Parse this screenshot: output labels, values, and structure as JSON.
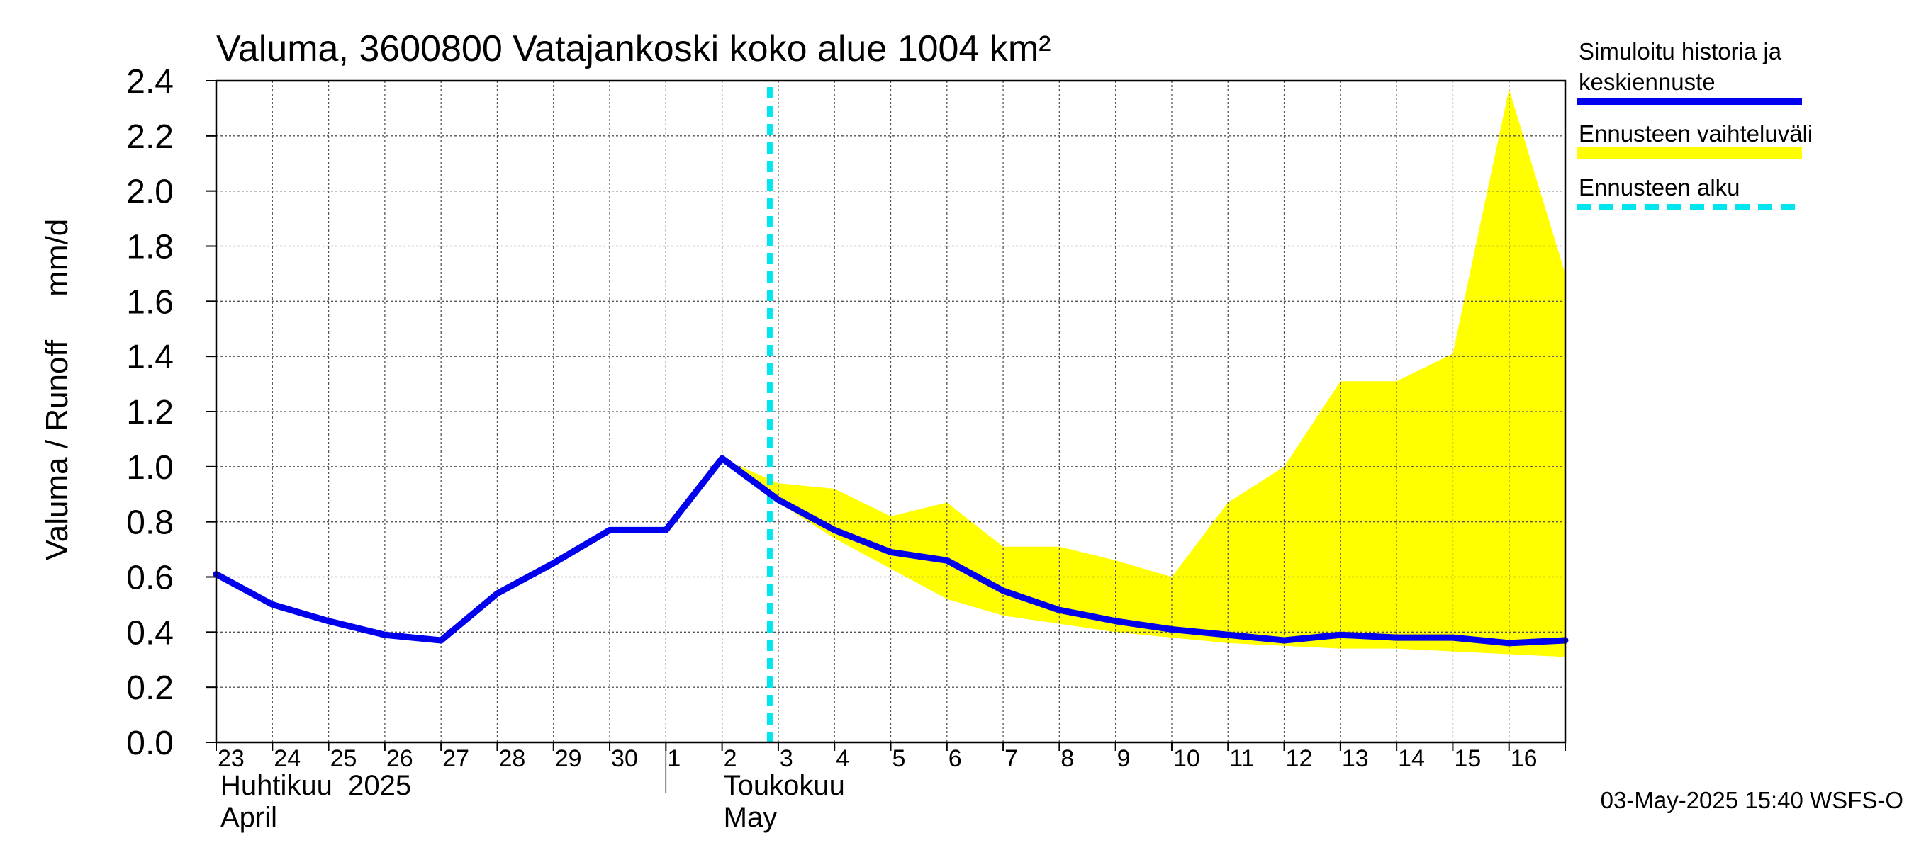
{
  "chart_data": {
    "type": "line",
    "title": "Valuma, 3600800 Vatajankoski koko alue 1004 km²",
    "ylabel": "Valuma / Runoff     mm/d",
    "ylim": [
      0,
      2.4
    ],
    "yticks": [
      "0.0",
      "0.2",
      "0.4",
      "0.6",
      "0.8",
      "1.0",
      "1.2",
      "1.4",
      "1.6",
      "1.8",
      "2.0",
      "2.2",
      "2.4"
    ],
    "x_range": [
      "2025-04-23",
      "2025-05-17"
    ],
    "x_day_labels": [
      "23",
      "24",
      "25",
      "26",
      "27",
      "28",
      "29",
      "30",
      "1",
      "2",
      "3",
      "4",
      "5",
      "6",
      "7",
      "8",
      "9",
      "10",
      "11",
      "12",
      "13",
      "14",
      "15",
      "16"
    ],
    "month_labels": [
      {
        "fi": "Huhtikuu  2025",
        "en": "April"
      },
      {
        "fi": "Toukokuu",
        "en": "May"
      }
    ],
    "grid": true,
    "legend_position": "right",
    "legend": [
      {
        "label": "Simuloitu historia ja keskiennuste",
        "line1": "Simuloitu historia ja",
        "line2": "keskiennuste",
        "color": "#0000ee",
        "style": "solid"
      },
      {
        "label": "Ennusteen vaihteluväli",
        "color": "#ffff00",
        "style": "band"
      },
      {
        "label": "Ennusteen alku",
        "color": "#00e5ee",
        "style": "dashed"
      }
    ],
    "forecast_start": "2025-05-03",
    "series": [
      {
        "name": "Simuloitu historia ja keskiennuste",
        "color": "#0000ee",
        "x": [
          "2025-04-23",
          "2025-04-24",
          "2025-04-25",
          "2025-04-26",
          "2025-04-27",
          "2025-04-28",
          "2025-04-29",
          "2025-04-30",
          "2025-05-01",
          "2025-05-02",
          "2025-05-03",
          "2025-05-04",
          "2025-05-05",
          "2025-05-06",
          "2025-05-07",
          "2025-05-08",
          "2025-05-09",
          "2025-05-10",
          "2025-05-11",
          "2025-05-12",
          "2025-05-13",
          "2025-05-14",
          "2025-05-15",
          "2025-05-16",
          "2025-05-17"
        ],
        "values": [
          0.61,
          0.5,
          0.44,
          0.39,
          0.37,
          0.54,
          0.65,
          0.77,
          0.77,
          1.03,
          0.88,
          0.77,
          0.69,
          0.66,
          0.55,
          0.48,
          0.44,
          0.41,
          0.39,
          0.37,
          0.39,
          0.38,
          0.38,
          0.36,
          0.37
        ]
      },
      {
        "name": "Ennusteen vaihteluväli",
        "color": "#ffff00",
        "x": [
          "2025-05-02",
          "2025-05-03",
          "2025-05-04",
          "2025-05-05",
          "2025-05-06",
          "2025-05-07",
          "2025-05-08",
          "2025-05-09",
          "2025-05-10",
          "2025-05-11",
          "2025-05-12",
          "2025-05-13",
          "2025-05-14",
          "2025-05-15",
          "2025-05-16",
          "2025-05-17"
        ],
        "upper": [
          1.03,
          0.94,
          0.92,
          0.82,
          0.87,
          0.71,
          0.71,
          0.66,
          0.6,
          0.87,
          1.0,
          1.31,
          1.31,
          1.41,
          2.37,
          1.7
        ],
        "lower": [
          1.03,
          0.87,
          0.74,
          0.63,
          0.52,
          0.46,
          0.43,
          0.4,
          0.38,
          0.36,
          0.35,
          0.34,
          0.34,
          0.33,
          0.32,
          0.31
        ]
      }
    ]
  },
  "footer": {
    "timestamp": "03-May-2025 15:40 WSFS-O"
  }
}
